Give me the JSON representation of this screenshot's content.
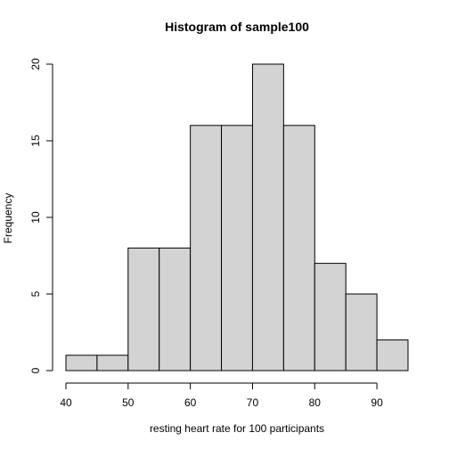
{
  "chart_data": {
    "type": "bar",
    "title": "Histogram of sample100",
    "xlabel": "resting heart rate for 100 participants",
    "ylabel": "Frequency",
    "bins": [
      {
        "start": 40,
        "end": 45,
        "count": 1
      },
      {
        "start": 45,
        "end": 50,
        "count": 1
      },
      {
        "start": 50,
        "end": 55,
        "count": 8
      },
      {
        "start": 55,
        "end": 60,
        "count": 8
      },
      {
        "start": 60,
        "end": 65,
        "count": 16
      },
      {
        "start": 65,
        "end": 70,
        "count": 16
      },
      {
        "start": 70,
        "end": 75,
        "count": 20
      },
      {
        "start": 75,
        "end": 80,
        "count": 16
      },
      {
        "start": 80,
        "end": 85,
        "count": 7
      },
      {
        "start": 85,
        "end": 90,
        "count": 5
      },
      {
        "start": 90,
        "end": 95,
        "count": 2
      }
    ],
    "x_ticks": [
      40,
      50,
      60,
      70,
      80,
      90
    ],
    "y_ticks": [
      0,
      5,
      10,
      15,
      20
    ],
    "xlim": [
      40,
      95
    ],
    "ylim": [
      0,
      20
    ],
    "bar_color": "#d3d3d3",
    "grid": false
  }
}
